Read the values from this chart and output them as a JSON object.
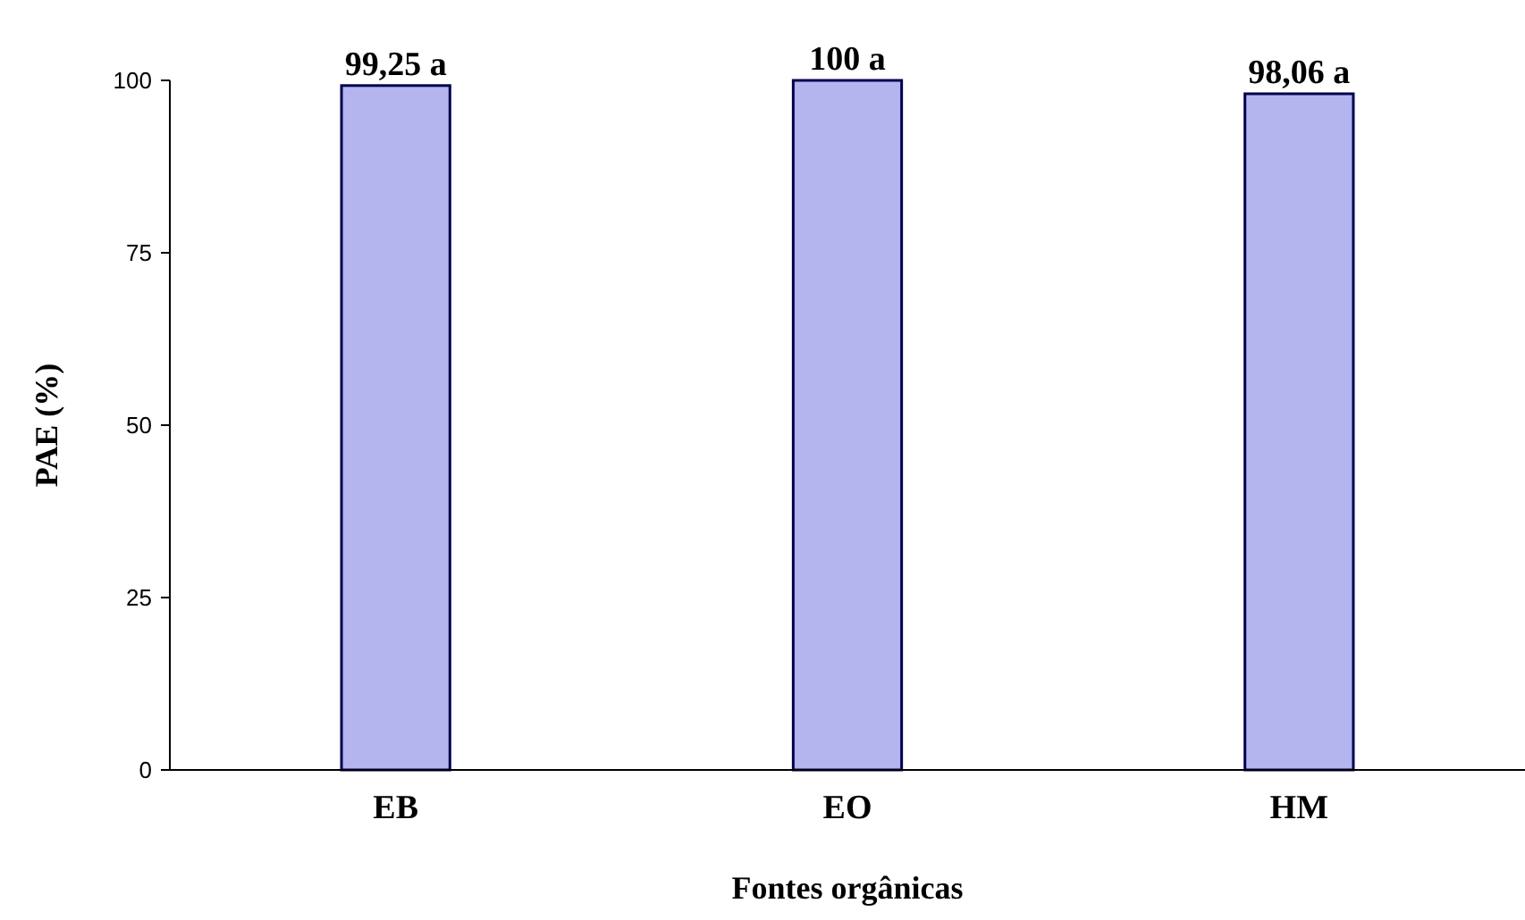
{
  "chart_data": {
    "type": "bar",
    "xlabel": "Fontes orgânicas",
    "ylabel": "PAE (%)",
    "categories": [
      "EB",
      "EO",
      "HM"
    ],
    "values": [
      99.25,
      100,
      98.06
    ],
    "value_labels": [
      "99,25 a",
      "100 a",
      "98,06 a"
    ],
    "color": "#b4b4ee",
    "ylim": [
      0,
      100
    ],
    "yticks": [
      0,
      25,
      50,
      75,
      100
    ],
    "grid": false
  }
}
